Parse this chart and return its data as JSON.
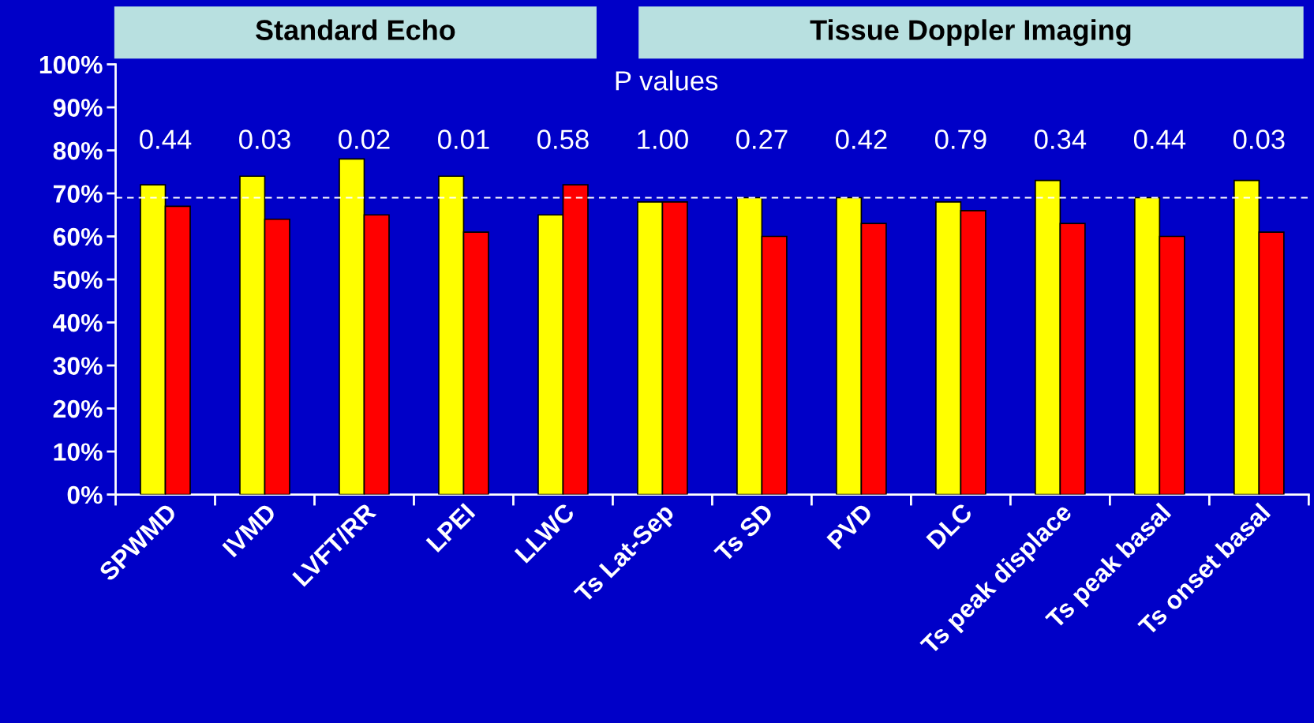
{
  "chart_data": {
    "type": "bar",
    "categories": [
      "SPWMD",
      "IVMD",
      "LVFT/RR",
      "LPEI",
      "LLWC",
      "Ts Lat-Sep",
      "Ts SD",
      "PVD",
      "DLC",
      "Ts peak displace",
      "Ts peak basal",
      "Ts onset basal"
    ],
    "series": [
      {
        "color": "#ffff00",
        "values": [
          72,
          74,
          78,
          74,
          65,
          68,
          69,
          69,
          68,
          73,
          69,
          73
        ]
      },
      {
        "color": "#ff0000",
        "values": [
          67,
          64,
          65,
          61,
          72,
          68,
          60,
          63,
          66,
          63,
          60,
          61
        ]
      }
    ],
    "ylim": [
      0,
      100
    ],
    "yticks": [
      {
        "value": 0,
        "label": "0%"
      },
      {
        "value": 10,
        "label": "10%"
      },
      {
        "value": 20,
        "label": "20%"
      },
      {
        "value": 30,
        "label": "30%"
      },
      {
        "value": 40,
        "label": "40%"
      },
      {
        "value": 50,
        "label": "50%"
      },
      {
        "value": 60,
        "label": "60%"
      },
      {
        "value": 70,
        "label": "70%"
      },
      {
        "value": 80,
        "label": "80%"
      },
      {
        "value": 90,
        "label": "90%"
      },
      {
        "value": 100,
        "label": "100%"
      }
    ],
    "grid": false,
    "legend": false,
    "ref_lines": [
      {
        "axis": "y",
        "value": 69,
        "color": "#ffffff",
        "line_style": "dashed"
      }
    ],
    "annotations": [
      "Standard Echo",
      "Tissue Doppler Imaging",
      "P values",
      "0.44",
      "0.03",
      "0.02",
      "0.01",
      "0.58",
      "1.00",
      "0.27",
      "0.42",
      "0.79",
      "0.34",
      "0.44",
      "0.03"
    ]
  }
}
